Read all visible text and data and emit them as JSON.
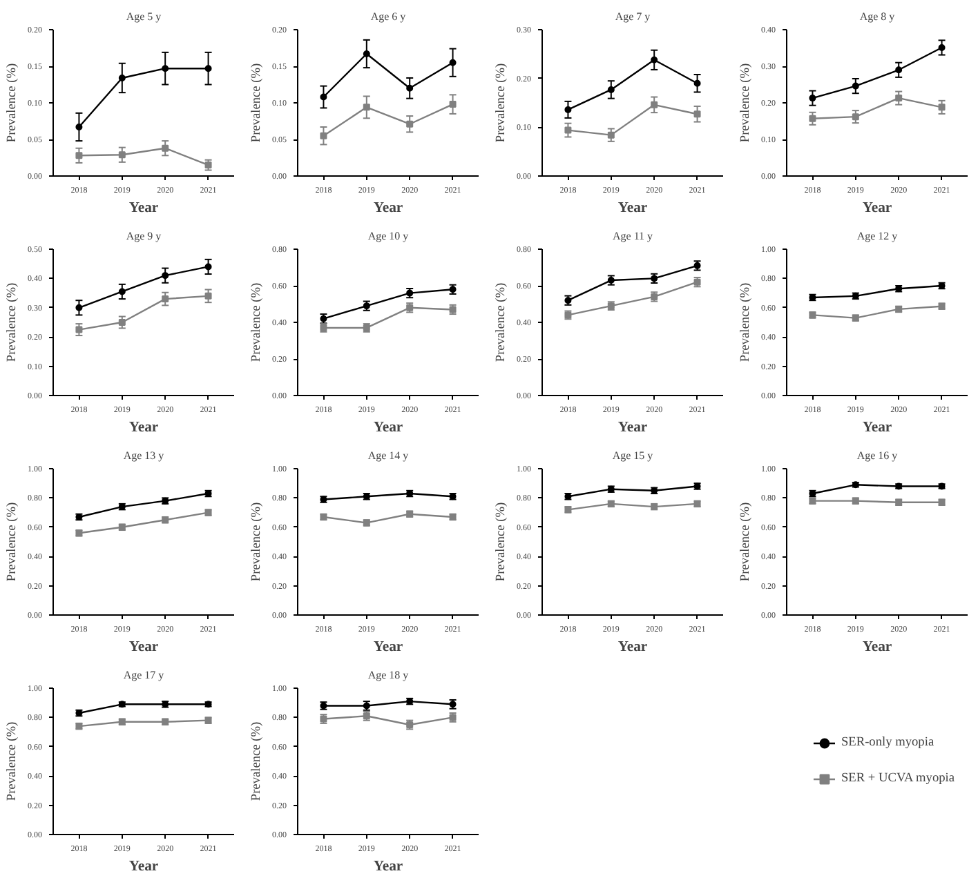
{
  "chart_data": [
    {
      "type": "line",
      "title": "Age 5 y",
      "xlabel": "Year",
      "ylabel": "Prevalence (%)",
      "categories": [
        "2018",
        "2019",
        "2020",
        "2021"
      ],
      "ylim": [
        0,
        0.2
      ],
      "yticks": [
        {
          "value": 0,
          "label": "0.00"
        },
        {
          "value": 0.05,
          "label": "0.05"
        },
        {
          "value": 0.1,
          "label": "0.10"
        },
        {
          "value": 0.15,
          "label": "0.15"
        },
        {
          "value": 0.2,
          "label": "0.20"
        }
      ],
      "grid": false,
      "series": [
        {
          "color": "#000000",
          "marker": "circle",
          "values": [
            0.067,
            0.134,
            0.147,
            0.147
          ],
          "errors": [
            0.019,
            0.02,
            0.022,
            0.022
          ]
        },
        {
          "color": "#808080",
          "marker": "square",
          "values": [
            0.028,
            0.029,
            0.038,
            0.015
          ],
          "errors": [
            0.01,
            0.01,
            0.01,
            0.007
          ]
        }
      ]
    },
    {
      "type": "line",
      "title": "Age 6 y",
      "xlabel": "Year",
      "ylabel": "Prevalence (%)",
      "categories": [
        "2018",
        "2019",
        "2020",
        "2021"
      ],
      "ylim": [
        0,
        0.2
      ],
      "yticks": [
        {
          "value": 0,
          "label": "0.00"
        },
        {
          "value": 0.05,
          "label": "0.05"
        },
        {
          "value": 0.1,
          "label": "0.10"
        },
        {
          "value": 0.15,
          "label": "0.15"
        },
        {
          "value": 0.2,
          "label": "0.20"
        }
      ],
      "grid": false,
      "series": [
        {
          "color": "#000000",
          "marker": "circle",
          "values": [
            0.108,
            0.167,
            0.12,
            0.155
          ],
          "errors": [
            0.015,
            0.019,
            0.014,
            0.019
          ]
        },
        {
          "color": "#808080",
          "marker": "square",
          "values": [
            0.055,
            0.094,
            0.071,
            0.098
          ],
          "errors": [
            0.012,
            0.015,
            0.011,
            0.013
          ]
        }
      ]
    },
    {
      "type": "line",
      "title": "Age 7 y",
      "xlabel": "Year",
      "ylabel": "Prevalence (%)",
      "categories": [
        "2018",
        "2019",
        "2020",
        "2021"
      ],
      "ylim": [
        0,
        0.3
      ],
      "yticks": [
        {
          "value": 0,
          "label": "0.00"
        },
        {
          "value": 0.1,
          "label": "0.10"
        },
        {
          "value": 0.2,
          "label": "0.20"
        },
        {
          "value": 0.3,
          "label": "0.30"
        }
      ],
      "grid": false,
      "series": [
        {
          "color": "#000000",
          "marker": "circle",
          "values": [
            0.136,
            0.177,
            0.238,
            0.19
          ],
          "errors": [
            0.017,
            0.018,
            0.02,
            0.018
          ]
        },
        {
          "color": "#808080",
          "marker": "square",
          "values": [
            0.094,
            0.084,
            0.146,
            0.127
          ],
          "errors": [
            0.014,
            0.013,
            0.016,
            0.016
          ]
        }
      ]
    },
    {
      "type": "line",
      "title": "Age 8 y",
      "xlabel": "Year",
      "ylabel": "Prevalence (%)",
      "categories": [
        "2018",
        "2019",
        "2020",
        "2021"
      ],
      "ylim": [
        0,
        0.4
      ],
      "yticks": [
        {
          "value": 0,
          "label": "0.00"
        },
        {
          "value": 0.1,
          "label": "0.10"
        },
        {
          "value": 0.2,
          "label": "0.20"
        },
        {
          "value": 0.3,
          "label": "0.30"
        },
        {
          "value": 0.4,
          "label": "0.40"
        }
      ],
      "grid": false,
      "series": [
        {
          "color": "#000000",
          "marker": "circle",
          "values": [
            0.213,
            0.246,
            0.29,
            0.351
          ],
          "errors": [
            0.02,
            0.02,
            0.02,
            0.02
          ]
        },
        {
          "color": "#808080",
          "marker": "square",
          "values": [
            0.157,
            0.162,
            0.213,
            0.188
          ],
          "errors": [
            0.017,
            0.017,
            0.018,
            0.018
          ]
        }
      ]
    },
    {
      "type": "line",
      "title": "Age 9 y",
      "xlabel": "Year",
      "ylabel": "Prevalence (%)",
      "categories": [
        "2018",
        "2019",
        "2020",
        "2021"
      ],
      "ylim": [
        0,
        0.5
      ],
      "yticks": [
        {
          "value": 0,
          "label": "0.00"
        },
        {
          "value": 0.1,
          "label": "0.10"
        },
        {
          "value": 0.2,
          "label": "0.20"
        },
        {
          "value": 0.3,
          "label": "0.30"
        },
        {
          "value": 0.4,
          "label": "0.40"
        },
        {
          "value": 0.5,
          "label": "0.50"
        }
      ],
      "grid": false,
      "series": [
        {
          "color": "#000000",
          "marker": "circle",
          "values": [
            0.3,
            0.355,
            0.41,
            0.44
          ],
          "errors": [
            0.025,
            0.025,
            0.025,
            0.025
          ]
        },
        {
          "color": "#808080",
          "marker": "square",
          "values": [
            0.225,
            0.25,
            0.33,
            0.34
          ],
          "errors": [
            0.02,
            0.02,
            0.022,
            0.022
          ]
        }
      ]
    },
    {
      "type": "line",
      "title": "Age 10 y",
      "xlabel": "Year",
      "ylabel": "Prevalence (%)",
      "categories": [
        "2018",
        "2019",
        "2020",
        "2021"
      ],
      "ylim": [
        0,
        0.8
      ],
      "yticks": [
        {
          "value": 0,
          "label": "0.00"
        },
        {
          "value": 0.2,
          "label": "0.20"
        },
        {
          "value": 0.4,
          "label": "0.40"
        },
        {
          "value": 0.6,
          "label": "0.60"
        },
        {
          "value": 0.8,
          "label": "0.80"
        }
      ],
      "grid": false,
      "series": [
        {
          "color": "#000000",
          "marker": "circle",
          "values": [
            0.42,
            0.49,
            0.56,
            0.58
          ],
          "errors": [
            0.025,
            0.025,
            0.025,
            0.025
          ]
        },
        {
          "color": "#808080",
          "marker": "square",
          "values": [
            0.37,
            0.37,
            0.48,
            0.47
          ],
          "errors": [
            0.022,
            0.022,
            0.025,
            0.025
          ]
        }
      ]
    },
    {
      "type": "line",
      "title": "Age 11 y",
      "xlabel": "Year",
      "ylabel": "Prevalence (%)",
      "categories": [
        "2018",
        "2019",
        "2020",
        "2021"
      ],
      "ylim": [
        0,
        0.8
      ],
      "yticks": [
        {
          "value": 0,
          "label": "0.00"
        },
        {
          "value": 0.2,
          "label": "0.20"
        },
        {
          "value": 0.4,
          "label": "0.40"
        },
        {
          "value": 0.6,
          "label": "0.60"
        },
        {
          "value": 0.8,
          "label": "0.80"
        }
      ],
      "grid": false,
      "series": [
        {
          "color": "#000000",
          "marker": "circle",
          "values": [
            0.52,
            0.63,
            0.64,
            0.71
          ],
          "errors": [
            0.025,
            0.025,
            0.025,
            0.025
          ]
        },
        {
          "color": "#808080",
          "marker": "square",
          "values": [
            0.44,
            0.49,
            0.54,
            0.62
          ],
          "errors": [
            0.022,
            0.022,
            0.025,
            0.025
          ]
        }
      ]
    },
    {
      "type": "line",
      "title": "Age 12 y",
      "xlabel": "Year",
      "ylabel": "Prevalence (%)",
      "categories": [
        "2018",
        "2019",
        "2020",
        "2021"
      ],
      "ylim": [
        0,
        1
      ],
      "yticks": [
        {
          "value": 0,
          "label": "0.00"
        },
        {
          "value": 0.2,
          "label": "0.20"
        },
        {
          "value": 0.4,
          "label": "0.40"
        },
        {
          "value": 0.6,
          "label": "0.60"
        },
        {
          "value": 0.8,
          "label": "0.80"
        },
        {
          "value": 1,
          "label": "1.00"
        }
      ],
      "grid": false,
      "series": [
        {
          "color": "#000000",
          "marker": "circle",
          "values": [
            0.67,
            0.68,
            0.73,
            0.75
          ],
          "errors": [
            0.02,
            0.02,
            0.02,
            0.02
          ]
        },
        {
          "color": "#808080",
          "marker": "square",
          "values": [
            0.55,
            0.53,
            0.59,
            0.61
          ],
          "errors": [
            0.02,
            0.02,
            0.02,
            0.02
          ]
        }
      ]
    },
    {
      "type": "line",
      "title": "Age 13 y",
      "xlabel": "Year",
      "ylabel": "Prevalence (%)",
      "categories": [
        "2018",
        "2019",
        "2020",
        "2021"
      ],
      "ylim": [
        0,
        1
      ],
      "yticks": [
        {
          "value": 0,
          "label": "0.00"
        },
        {
          "value": 0.2,
          "label": "0.20"
        },
        {
          "value": 0.4,
          "label": "0.40"
        },
        {
          "value": 0.6,
          "label": "0.60"
        },
        {
          "value": 0.8,
          "label": "0.80"
        },
        {
          "value": 1,
          "label": "1.00"
        }
      ],
      "grid": false,
      "series": [
        {
          "color": "#000000",
          "marker": "circle",
          "values": [
            0.67,
            0.74,
            0.78,
            0.83
          ],
          "errors": [
            0.02,
            0.02,
            0.02,
            0.02
          ]
        },
        {
          "color": "#808080",
          "marker": "square",
          "values": [
            0.56,
            0.6,
            0.65,
            0.7
          ],
          "errors": [
            0.02,
            0.02,
            0.02,
            0.02
          ]
        }
      ]
    },
    {
      "type": "line",
      "title": "Age 14 y",
      "xlabel": "Year",
      "ylabel": "Prevalence (%)",
      "categories": [
        "2018",
        "2019",
        "2020",
        "2021"
      ],
      "ylim": [
        0,
        1
      ],
      "yticks": [
        {
          "value": 0,
          "label": "0.00"
        },
        {
          "value": 0.2,
          "label": "0.20"
        },
        {
          "value": 0.4,
          "label": "0.40"
        },
        {
          "value": 0.6,
          "label": "0.60"
        },
        {
          "value": 0.8,
          "label": "0.80"
        },
        {
          "value": 1,
          "label": "1.00"
        }
      ],
      "grid": false,
      "series": [
        {
          "color": "#000000",
          "marker": "circle",
          "values": [
            0.79,
            0.81,
            0.83,
            0.81
          ],
          "errors": [
            0.02,
            0.02,
            0.02,
            0.02
          ]
        },
        {
          "color": "#808080",
          "marker": "square",
          "values": [
            0.67,
            0.63,
            0.69,
            0.67
          ],
          "errors": [
            0.02,
            0.02,
            0.02,
            0.02
          ]
        }
      ]
    },
    {
      "type": "line",
      "title": "Age 15 y",
      "xlabel": "Year",
      "ylabel": "Prevalence (%)",
      "categories": [
        "2018",
        "2019",
        "2020",
        "2021"
      ],
      "ylim": [
        0,
        1
      ],
      "yticks": [
        {
          "value": 0,
          "label": "0.00"
        },
        {
          "value": 0.2,
          "label": "0.20"
        },
        {
          "value": 0.4,
          "label": "0.40"
        },
        {
          "value": 0.6,
          "label": "0.60"
        },
        {
          "value": 0.8,
          "label": "0.80"
        },
        {
          "value": 1,
          "label": "1.00"
        }
      ],
      "grid": false,
      "series": [
        {
          "color": "#000000",
          "marker": "circle",
          "values": [
            0.81,
            0.86,
            0.85,
            0.88
          ],
          "errors": [
            0.02,
            0.02,
            0.02,
            0.02
          ]
        },
        {
          "color": "#808080",
          "marker": "square",
          "values": [
            0.72,
            0.76,
            0.74,
            0.76
          ],
          "errors": [
            0.02,
            0.02,
            0.02,
            0.02
          ]
        }
      ]
    },
    {
      "type": "line",
      "title": "Age 16 y",
      "xlabel": "Year",
      "ylabel": "Prevalence (%)",
      "categories": [
        "2018",
        "2019",
        "2020",
        "2021"
      ],
      "ylim": [
        0,
        1
      ],
      "yticks": [
        {
          "value": 0,
          "label": "0.00"
        },
        {
          "value": 0.2,
          "label": "0.20"
        },
        {
          "value": 0.4,
          "label": "0.40"
        },
        {
          "value": 0.6,
          "label": "0.60"
        },
        {
          "value": 0.8,
          "label": "0.80"
        },
        {
          "value": 1,
          "label": "1.00"
        }
      ],
      "grid": false,
      "series": [
        {
          "color": "#000000",
          "marker": "circle",
          "values": [
            0.83,
            0.89,
            0.88,
            0.88
          ],
          "errors": [
            0.02,
            0.015,
            0.015,
            0.015
          ]
        },
        {
          "color": "#808080",
          "marker": "square",
          "values": [
            0.78,
            0.78,
            0.77,
            0.77
          ],
          "errors": [
            0.02,
            0.02,
            0.02,
            0.02
          ]
        }
      ]
    },
    {
      "type": "line",
      "title": "Age 17 y",
      "xlabel": "Year",
      "ylabel": "Prevalence (%)",
      "categories": [
        "2018",
        "2019",
        "2020",
        "2021"
      ],
      "ylim": [
        0,
        1
      ],
      "yticks": [
        {
          "value": 0,
          "label": "0.00"
        },
        {
          "value": 0.2,
          "label": "0.20"
        },
        {
          "value": 0.4,
          "label": "0.40"
        },
        {
          "value": 0.6,
          "label": "0.60"
        },
        {
          "value": 0.8,
          "label": "0.80"
        },
        {
          "value": 1,
          "label": "1.00"
        }
      ],
      "grid": false,
      "series": [
        {
          "color": "#000000",
          "marker": "circle",
          "values": [
            0.83,
            0.89,
            0.89,
            0.89
          ],
          "errors": [
            0.02,
            0.015,
            0.02,
            0.015
          ]
        },
        {
          "color": "#808080",
          "marker": "square",
          "values": [
            0.74,
            0.77,
            0.77,
            0.78
          ],
          "errors": [
            0.02,
            0.02,
            0.02,
            0.02
          ]
        }
      ]
    },
    {
      "type": "line",
      "title": "Age 18 y",
      "xlabel": "Year",
      "ylabel": "Prevalence (%)",
      "categories": [
        "2018",
        "2019",
        "2020",
        "2021"
      ],
      "ylim": [
        0,
        1
      ],
      "yticks": [
        {
          "value": 0,
          "label": "0.00"
        },
        {
          "value": 0.2,
          "label": "0.20"
        },
        {
          "value": 0.4,
          "label": "0.40"
        },
        {
          "value": 0.6,
          "label": "0.60"
        },
        {
          "value": 0.8,
          "label": "0.80"
        },
        {
          "value": 1,
          "label": "1.00"
        }
      ],
      "grid": false,
      "legend": "right",
      "series": [
        {
          "name": "SER-only myopia",
          "color": "#000000",
          "marker": "circle",
          "values": [
            0.88,
            0.88,
            0.91,
            0.89
          ],
          "errors": [
            0.025,
            0.03,
            0.02,
            0.03
          ]
        },
        {
          "name": "SER + UCVA myopia",
          "color": "#808080",
          "marker": "square",
          "values": [
            0.79,
            0.81,
            0.75,
            0.8
          ],
          "errors": [
            0.03,
            0.03,
            0.03,
            0.03
          ]
        }
      ]
    }
  ]
}
